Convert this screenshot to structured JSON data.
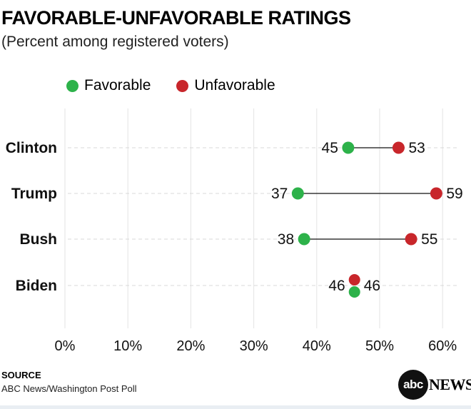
{
  "title": "FAVORABLE-UNFAVORABLE RATINGS",
  "subtitle": "(Percent among registered voters)",
  "legend": [
    {
      "label": "Favorable",
      "color": "#2db24a"
    },
    {
      "label": "Unfavorable",
      "color": "#c8262b"
    }
  ],
  "source": {
    "heading": "SOURCE",
    "text": "ABC News/Washington Post Poll"
  },
  "logo": {
    "mark": "abc",
    "word": "NEWS"
  },
  "chart_data": {
    "type": "dot",
    "title": "FAVORABLE-UNFAVORABLE RATINGS",
    "subtitle": "(Percent among registered voters)",
    "categories": [
      "Clinton",
      "Trump",
      "Bush",
      "Biden"
    ],
    "series": [
      {
        "name": "Favorable",
        "color": "#2db24a",
        "values": [
          45,
          37,
          38,
          46
        ]
      },
      {
        "name": "Unfavorable",
        "color": "#c8262b",
        "values": [
          53,
          59,
          55,
          46
        ]
      }
    ],
    "xlim": [
      0,
      60
    ],
    "xticks": [
      0,
      10,
      20,
      30,
      40,
      50,
      60
    ],
    "tick_labels": [
      "0%",
      "10%",
      "20%",
      "30%",
      "40%",
      "50%",
      "60%"
    ],
    "grid": true,
    "legend_position": "top-left"
  }
}
